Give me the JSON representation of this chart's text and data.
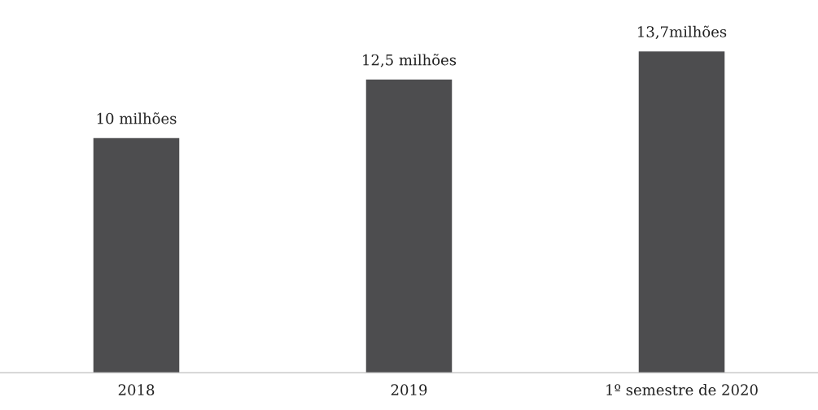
{
  "chart_data": {
    "type": "bar",
    "categories": [
      "2018",
      "2019",
      "1º semestre de 2020"
    ],
    "values": [
      10,
      12.5,
      13.7
    ],
    "value_labels": [
      "10 milhões",
      "12,5 milhões",
      "13,7milhões"
    ],
    "color": "#4d4d4f",
    "tick_labels": "x",
    "grid": false
  }
}
